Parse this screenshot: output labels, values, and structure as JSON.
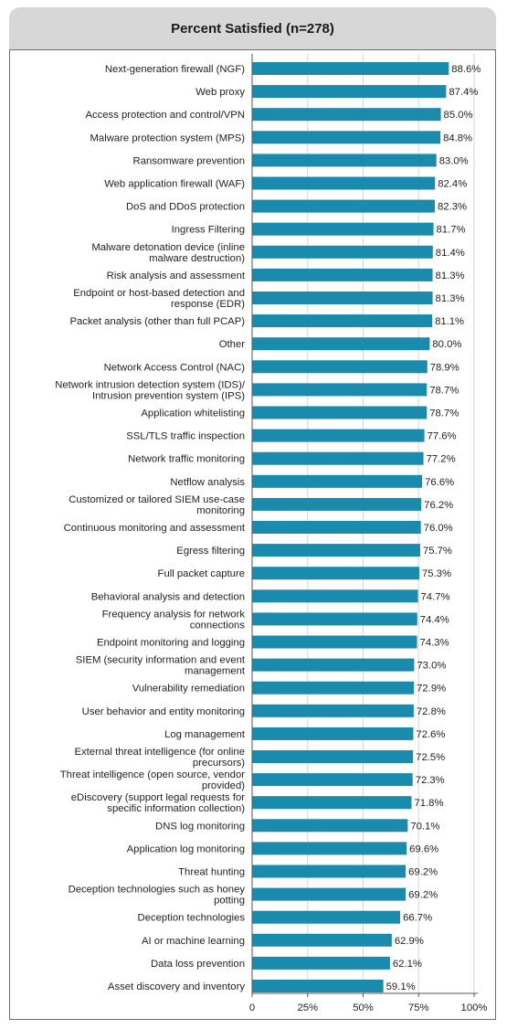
{
  "chart_data": {
    "type": "bar",
    "orientation": "horizontal",
    "title": "Percent Satisfied (n=278)",
    "bar_color": "#1a8aad",
    "grid": true,
    "xlim": [
      0,
      100
    ],
    "xticks": [
      "0",
      "25%",
      "50%",
      "75%",
      "100%"
    ],
    "xtick_values": [
      0,
      25,
      50,
      75,
      100
    ],
    "categories": [
      "Next-generation firewall (NGF)",
      "Web proxy",
      "Access protection and control/VPN",
      "Malware protection system (MPS)",
      "Ransomware prevention",
      "Web application firewall (WAF)",
      "DoS and DDoS protection",
      "Ingress Filtering",
      "Malware detonation device (inline malware destruction)",
      "Risk analysis and assessment",
      "Endpoint or host-based detection and response (EDR)",
      "Packet analysis (other than full PCAP)",
      "Other",
      "Network Access Control (NAC)",
      "Network intrusion detection system (IDS)/ Intrusion prevention system (IPS)",
      "Application whitelisting",
      "SSL/TLS traffic inspection",
      "Network traffic monitoring",
      "Netflow analysis",
      "Customized or tailored SIEM use-case monitoring",
      "Continuous monitoring and assessment",
      "Egress filtering",
      "Full packet capture",
      "Behavioral analysis and detection",
      "Frequency analysis for network connections",
      "Endpoint monitoring and logging",
      "SIEM (security information and event management",
      "Vulnerability remediation",
      "User behavior and entity monitoring",
      "Log management",
      "External threat intelligence (for online precursors)",
      "Threat intelligence (open source, vendor provided)",
      "eDiscovery (support legal requests for specific information collection)",
      "DNS log monitoring",
      "Application log monitoring",
      "Threat hunting",
      "Deception technologies such as honey potting",
      "Deception technologies",
      "AI or machine learning",
      "Data loss prevention",
      "Asset discovery and inventory"
    ],
    "label_lines": [
      [
        "Next-generation firewall (NGF)"
      ],
      [
        "Web proxy"
      ],
      [
        "Access protection and control/VPN"
      ],
      [
        "Malware protection system (MPS)"
      ],
      [
        "Ransomware prevention"
      ],
      [
        "Web application firewall (WAF)"
      ],
      [
        "DoS and DDoS protection"
      ],
      [
        "Ingress Filtering"
      ],
      [
        "Malware detonation device (inline",
        "malware destruction)"
      ],
      [
        "Risk analysis and assessment"
      ],
      [
        "Endpoint or host-based detection and",
        "response (EDR)"
      ],
      [
        "Packet analysis (other than full PCAP)"
      ],
      [
        "Other"
      ],
      [
        "Network Access Control (NAC)"
      ],
      [
        "Network intrusion detection system (IDS)/",
        "Intrusion prevention system (IPS)"
      ],
      [
        "Application whitelisting"
      ],
      [
        "SSL/TLS traffic inspection"
      ],
      [
        "Network traffic monitoring"
      ],
      [
        "Netflow analysis"
      ],
      [
        "Customized or tailored SIEM use-case",
        "monitoring"
      ],
      [
        "Continuous monitoring and assessment"
      ],
      [
        "Egress filtering"
      ],
      [
        "Full packet capture"
      ],
      [
        "Behavioral analysis and detection"
      ],
      [
        "Frequency analysis for network",
        "connections"
      ],
      [
        "Endpoint monitoring and logging"
      ],
      [
        "SIEM (security information and event",
        "management"
      ],
      [
        "Vulnerability remediation"
      ],
      [
        "User behavior and entity monitoring"
      ],
      [
        "Log management"
      ],
      [
        "External threat intelligence (for online",
        "precursors)"
      ],
      [
        "Threat intelligence (open source, vendor",
        "provided)"
      ],
      [
        "eDiscovery (support legal requests for",
        "specific information collection)"
      ],
      [
        "DNS log monitoring"
      ],
      [
        "Application log monitoring"
      ],
      [
        "Threat hunting"
      ],
      [
        "Deception technologies such as honey",
        "potting"
      ],
      [
        "Deception technologies"
      ],
      [
        "AI or machine learning"
      ],
      [
        "Data loss prevention"
      ],
      [
        "Asset discovery and inventory"
      ]
    ],
    "values": [
      88.6,
      87.4,
      85.0,
      84.8,
      83.0,
      82.4,
      82.3,
      81.7,
      81.4,
      81.3,
      81.3,
      81.1,
      80.0,
      78.9,
      78.7,
      78.7,
      77.6,
      77.2,
      76.6,
      76.2,
      76.0,
      75.7,
      75.3,
      74.7,
      74.4,
      74.3,
      73.0,
      72.9,
      72.8,
      72.6,
      72.5,
      72.3,
      71.8,
      70.1,
      69.6,
      69.2,
      69.2,
      66.7,
      62.9,
      62.1,
      59.1
    ],
    "value_labels": [
      "88.6%",
      "87.4%",
      "85.0%",
      "84.8%",
      "83.0%",
      "82.4%",
      "82.3%",
      "81.7%",
      "81.4%",
      "81.3%",
      "81.3%",
      "81.1%",
      "80.0%",
      "78.9%",
      "78.7%",
      "78.7%",
      "77.6%",
      "77.2%",
      "76.6%",
      "76.2%",
      "76.0%",
      "75.7%",
      "75.3%",
      "74.7%",
      "74.4%",
      "74.3%",
      "73.0%",
      "72.9%",
      "72.8%",
      "72.6%",
      "72.5%",
      "72.3%",
      "71.8%",
      "70.1%",
      "69.6%",
      "69.2%",
      "69.2%",
      "66.7%",
      "62.9%",
      "62.1%",
      "59.1%"
    ]
  }
}
